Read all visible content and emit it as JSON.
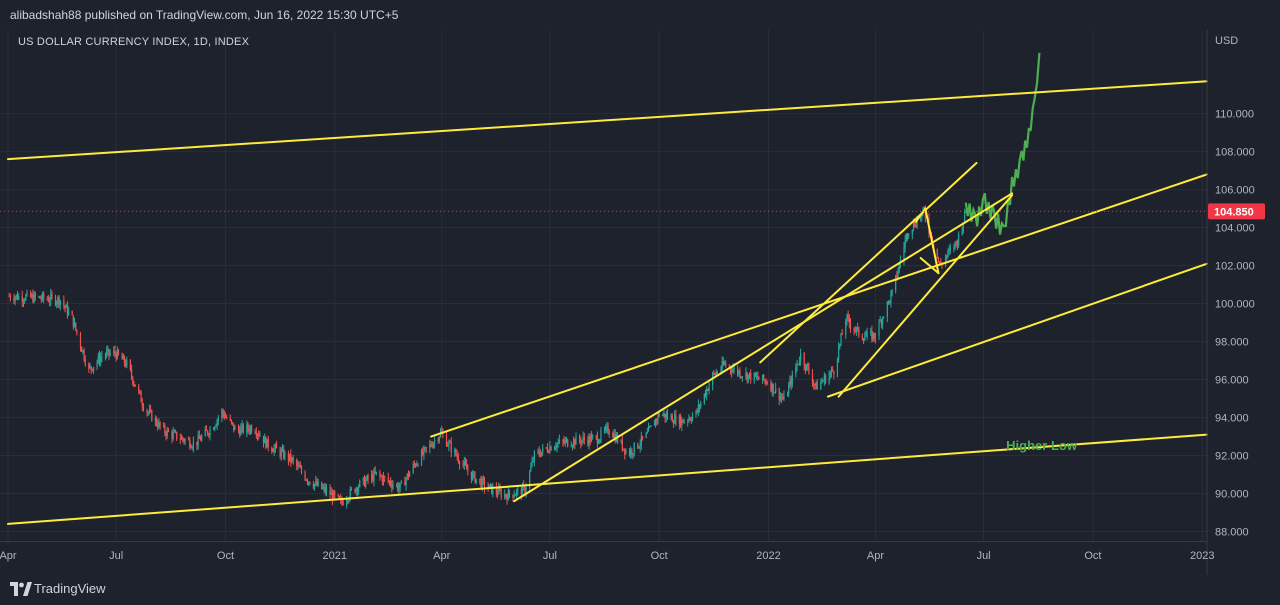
{
  "header": {
    "published_text": "alibadshah88 published on TradingView.com, Jun 16, 2022 15:30 UTC+5"
  },
  "symbol": {
    "title": "US DOLLAR CURRENCY INDEX, 1D, INDEX"
  },
  "footer": {
    "brand": "TradingView",
    "logo_icon": "tradingview-logo-icon"
  },
  "colors": {
    "background": "#1e222d",
    "grid": "#2a2e39",
    "candle_up": "#26a69a",
    "candle_down": "#ef5350",
    "trendline": "#ffeb3b",
    "projection": "#4caf50",
    "price_label": "#f23645",
    "text": "#b2b5be"
  },
  "chart_data": {
    "type": "candlestick",
    "title": "US DOLLAR CURRENCY INDEX, 1D, INDEX",
    "currency_label": "USD",
    "ylim": [
      87.5,
      114.4
    ],
    "y_ticks": [
      {
        "value": 88,
        "label": "88.000"
      },
      {
        "value": 90,
        "label": "90.000"
      },
      {
        "value": 92,
        "label": "92.000"
      },
      {
        "value": 94,
        "label": "94.000"
      },
      {
        "value": 96,
        "label": "96.000"
      },
      {
        "value": 98,
        "label": "98.000"
      },
      {
        "value": 100,
        "label": "100.000"
      },
      {
        "value": 102,
        "label": "102.000"
      },
      {
        "value": 104,
        "label": "104.000"
      },
      {
        "value": 106,
        "label": "106.000"
      },
      {
        "value": 108,
        "label": "108.000"
      },
      {
        "value": 110,
        "label": "110.000"
      }
    ],
    "x_ticks": [
      {
        "date": "2020-04-01",
        "label": "Apr"
      },
      {
        "date": "2020-07-01",
        "label": "Jul"
      },
      {
        "date": "2020-10-01",
        "label": "Oct"
      },
      {
        "date": "2021-01-01",
        "label": "2021"
      },
      {
        "date": "2021-04-01",
        "label": "Apr"
      },
      {
        "date": "2021-07-01",
        "label": "Jul"
      },
      {
        "date": "2021-10-01",
        "label": "Oct"
      },
      {
        "date": "2022-01-01",
        "label": "2022"
      },
      {
        "date": "2022-04-01",
        "label": "Apr"
      },
      {
        "date": "2022-07-01",
        "label": "Jul"
      },
      {
        "date": "2022-10-01",
        "label": "Oct"
      },
      {
        "date": "2023-01-01",
        "label": "2023"
      }
    ],
    "xlim": [
      "2020-04-01",
      "2023-01-05"
    ],
    "close_path": [
      [
        "2020-04-02",
        100.4
      ],
      [
        "2020-04-25",
        100.3
      ],
      [
        "2020-05-15",
        100.2
      ],
      [
        "2020-05-25",
        99.2
      ],
      [
        "2020-06-08",
        96.5
      ],
      [
        "2020-06-20",
        97.3
      ],
      [
        "2020-06-30",
        97.4
      ],
      [
        "2020-07-10",
        96.8
      ],
      [
        "2020-07-25",
        94.5
      ],
      [
        "2020-08-10",
        93.3
      ],
      [
        "2020-08-25",
        92.9
      ],
      [
        "2020-09-05",
        92.6
      ],
      [
        "2020-09-20",
        93.5
      ],
      [
        "2020-09-28",
        94.3
      ],
      [
        "2020-10-10",
        93.3
      ],
      [
        "2020-10-25",
        93.5
      ],
      [
        "2020-11-05",
        92.6
      ],
      [
        "2020-11-25",
        91.8
      ],
      [
        "2020-12-10",
        90.7
      ],
      [
        "2020-12-30",
        89.9
      ],
      [
        "2021-01-06",
        89.5
      ],
      [
        "2021-01-20",
        90.4
      ],
      [
        "2021-02-05",
        91.0
      ],
      [
        "2021-02-25",
        90.3
      ],
      [
        "2021-03-10",
        91.6
      ],
      [
        "2021-03-31",
        93.2
      ],
      [
        "2021-04-10",
        92.3
      ],
      [
        "2021-04-25",
        91.0
      ],
      [
        "2021-05-10",
        90.3
      ],
      [
        "2021-05-25",
        89.9
      ],
      [
        "2021-06-10",
        90.2
      ],
      [
        "2021-06-18",
        92.0
      ],
      [
        "2021-07-05",
        92.6
      ],
      [
        "2021-07-25",
        92.8
      ],
      [
        "2021-08-10",
        92.9
      ],
      [
        "2021-08-20",
        93.4
      ],
      [
        "2021-09-05",
        92.1
      ],
      [
        "2021-09-20",
        93.0
      ],
      [
        "2021-10-01",
        94.2
      ],
      [
        "2021-10-20",
        93.8
      ],
      [
        "2021-11-01",
        94.2
      ],
      [
        "2021-11-15",
        96.2
      ],
      [
        "2021-11-25",
        96.8
      ],
      [
        "2021-12-10",
        96.3
      ],
      [
        "2021-12-31",
        95.9
      ],
      [
        "2022-01-14",
        94.9
      ],
      [
        "2022-01-28",
        97.3
      ],
      [
        "2022-02-10",
        95.6
      ],
      [
        "2022-02-25",
        96.5
      ],
      [
        "2022-03-07",
        99.2
      ],
      [
        "2022-03-20",
        98.3
      ],
      [
        "2022-03-31",
        98.3
      ],
      [
        "2022-04-15",
        100.5
      ],
      [
        "2022-04-28",
        103.8
      ],
      [
        "2022-05-12",
        104.8
      ],
      [
        "2022-05-25",
        102.0
      ],
      [
        "2022-06-01",
        102.6
      ],
      [
        "2022-06-09",
        103.3
      ],
      [
        "2022-06-16",
        104.85
      ]
    ],
    "last_price": {
      "value": 104.85,
      "label": "104.850"
    },
    "projection_path": [
      [
        "2022-06-16",
        105.0
      ],
      [
        "2022-06-24",
        104.4
      ],
      [
        "2022-07-02",
        105.3
      ],
      [
        "2022-07-10",
        104.6
      ],
      [
        "2022-07-18",
        103.8
      ],
      [
        "2022-07-25",
        106.2
      ],
      [
        "2022-08-02",
        107.6
      ],
      [
        "2022-08-08",
        108.8
      ],
      [
        "2022-08-13",
        110.5
      ],
      [
        "2022-08-17",
        113.2
      ]
    ],
    "trendlines": [
      {
        "name": "upper-channel",
        "from": [
          "2020-04-01",
          107.6
        ],
        "to": [
          "2023-01-05",
          111.7
        ]
      },
      {
        "name": "higher-low-support",
        "from": [
          "2020-04-01",
          88.4
        ],
        "to": [
          "2023-01-05",
          93.1
        ]
      },
      {
        "name": "channel-top",
        "from": [
          "2021-03-23",
          93.0
        ],
        "to": [
          "2023-01-05",
          106.8
        ]
      },
      {
        "name": "channel-bottom",
        "from": [
          "2022-02-20",
          95.1
        ],
        "to": [
          "2023-01-05",
          102.1
        ]
      },
      {
        "name": "rising-support",
        "from": [
          "2021-06-01",
          89.6
        ],
        "to": [
          "2022-07-25",
          105.8
        ]
      },
      {
        "name": "parallel-upper",
        "from": [
          "2021-12-25",
          96.9
        ],
        "to": [
          "2022-06-25",
          107.4
        ]
      },
      {
        "name": "steep-support",
        "from": [
          "2022-03-01",
          95.1
        ],
        "to": [
          "2022-07-25",
          105.7
        ]
      },
      {
        "name": "pattern-a",
        "from": [
          "2022-05-05",
          104.3
        ],
        "to": [
          "2022-05-13",
          105.0
        ]
      },
      {
        "name": "pattern-b",
        "from": [
          "2022-05-13",
          105.0
        ],
        "to": [
          "2022-05-24",
          101.6
        ]
      },
      {
        "name": "pattern-c",
        "from": [
          "2022-05-24",
          101.6
        ],
        "to": [
          "2022-05-09",
          102.4
        ]
      }
    ],
    "annotations": [
      {
        "text": "Higher Low",
        "at": [
          "2022-07-20",
          92.3
        ]
      }
    ]
  }
}
